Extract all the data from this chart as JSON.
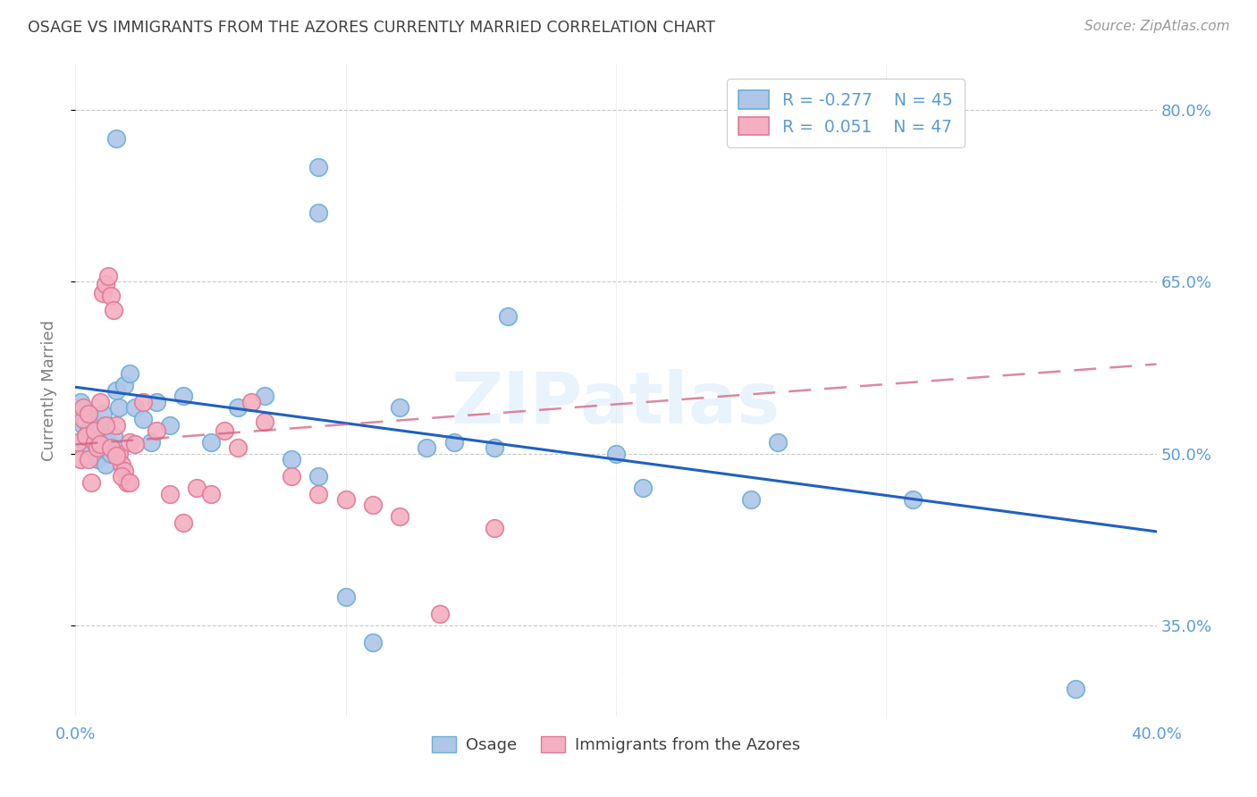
{
  "title": "OSAGE VS IMMIGRANTS FROM THE AZORES CURRENTLY MARRIED CORRELATION CHART",
  "source": "Source: ZipAtlas.com",
  "ylabel": "Currently Married",
  "xlim": [
    0.0,
    0.4
  ],
  "ylim": [
    0.27,
    0.84
  ],
  "xticks": [
    0.0,
    0.1,
    0.2,
    0.3,
    0.4
  ],
  "xtick_labels": [
    "0.0%",
    "",
    "",
    "",
    "40.0%"
  ],
  "ytick_vals": [
    0.35,
    0.5,
    0.65,
    0.8
  ],
  "ytick_labels": [
    "35.0%",
    "50.0%",
    "65.0%",
    "80.0%"
  ],
  "background_color": "#ffffff",
  "grid_color": "#c8c8c8",
  "title_color": "#404040",
  "axis_color": "#5b9bd5",
  "watermark": "ZIPatlas",
  "osage_color": "#aec6e8",
  "azores_color": "#f4afc0",
  "osage_edge": "#6baed6",
  "azores_edge": "#e07898",
  "trend_blue": "#2060c0",
  "trend_pink": "#d06080",
  "osage_label": "Osage",
  "azores_label": "Immigrants from the Azores",
  "blue_trend_x0": 0.0,
  "blue_trend_y0": 0.558,
  "blue_trend_x1": 0.4,
  "blue_trend_y1": 0.432,
  "pink_trend_x0": 0.0,
  "pink_trend_y0": 0.508,
  "pink_trend_x1": 0.4,
  "pink_trend_y1": 0.578,
  "osage_x": [
    0.001,
    0.002,
    0.003,
    0.004,
    0.005,
    0.006,
    0.007,
    0.008,
    0.009,
    0.01,
    0.011,
    0.012,
    0.013,
    0.014,
    0.015,
    0.016,
    0.018,
    0.02,
    0.022,
    0.025,
    0.028,
    0.03,
    0.035,
    0.04,
    0.05,
    0.06,
    0.07,
    0.08,
    0.09,
    0.1,
    0.11,
    0.12,
    0.13,
    0.14,
    0.155,
    0.2,
    0.21,
    0.25,
    0.26,
    0.31,
    0.015,
    0.09,
    0.09,
    0.16,
    0.37
  ],
  "osage_y": [
    0.535,
    0.545,
    0.525,
    0.505,
    0.52,
    0.53,
    0.51,
    0.495,
    0.52,
    0.535,
    0.49,
    0.51,
    0.5,
    0.515,
    0.555,
    0.54,
    0.56,
    0.57,
    0.54,
    0.53,
    0.51,
    0.545,
    0.525,
    0.55,
    0.51,
    0.54,
    0.55,
    0.495,
    0.48,
    0.375,
    0.335,
    0.54,
    0.505,
    0.51,
    0.505,
    0.5,
    0.47,
    0.46,
    0.51,
    0.46,
    0.775,
    0.75,
    0.71,
    0.62,
    0.295
  ],
  "azores_x": [
    0.001,
    0.002,
    0.003,
    0.004,
    0.005,
    0.006,
    0.007,
    0.008,
    0.009,
    0.01,
    0.011,
    0.012,
    0.013,
    0.014,
    0.015,
    0.016,
    0.017,
    0.018,
    0.019,
    0.02,
    0.003,
    0.005,
    0.007,
    0.009,
    0.011,
    0.013,
    0.015,
    0.017,
    0.02,
    0.022,
    0.025,
    0.03,
    0.035,
    0.04,
    0.045,
    0.05,
    0.055,
    0.06,
    0.065,
    0.07,
    0.08,
    0.09,
    0.1,
    0.11,
    0.12,
    0.135,
    0.155
  ],
  "azores_y": [
    0.51,
    0.495,
    0.53,
    0.515,
    0.495,
    0.475,
    0.51,
    0.505,
    0.545,
    0.64,
    0.648,
    0.655,
    0.638,
    0.625,
    0.525,
    0.5,
    0.49,
    0.485,
    0.475,
    0.51,
    0.54,
    0.535,
    0.52,
    0.508,
    0.525,
    0.505,
    0.498,
    0.48,
    0.475,
    0.508,
    0.545,
    0.52,
    0.465,
    0.44,
    0.47,
    0.465,
    0.52,
    0.505,
    0.545,
    0.528,
    0.48,
    0.465,
    0.46,
    0.455,
    0.445,
    0.36,
    0.435
  ]
}
